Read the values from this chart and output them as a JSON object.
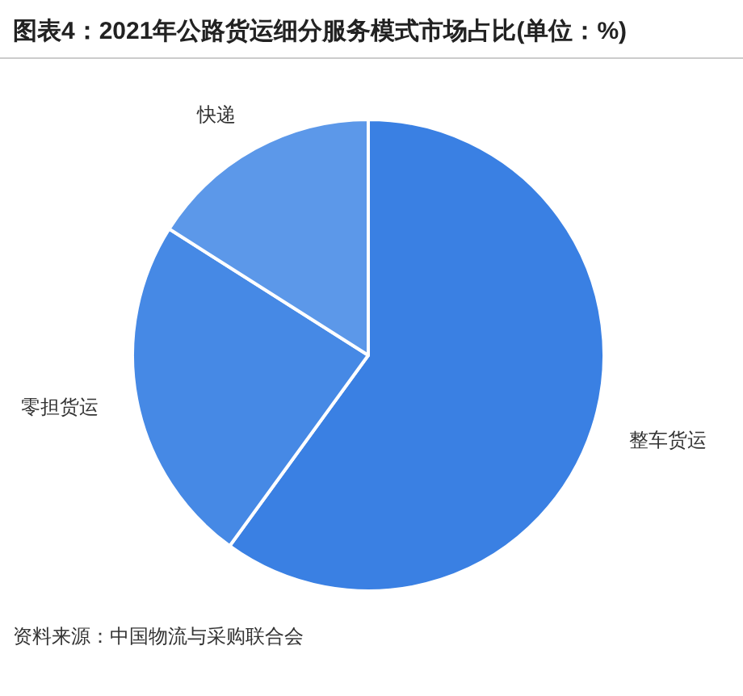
{
  "chart_data": {
    "type": "pie",
    "title": "图表4：2021年公路货运细分服务模式市场占比(单位：%)",
    "categories": [
      "整车货运",
      "零担货运",
      "快递"
    ],
    "values": [
      60,
      24,
      16
    ],
    "colors": [
      "#3a80e3",
      "#4689e5",
      "#5c98e9"
    ],
    "annotations": [
      "资料来源：中国物流与采购联合会"
    ]
  }
}
